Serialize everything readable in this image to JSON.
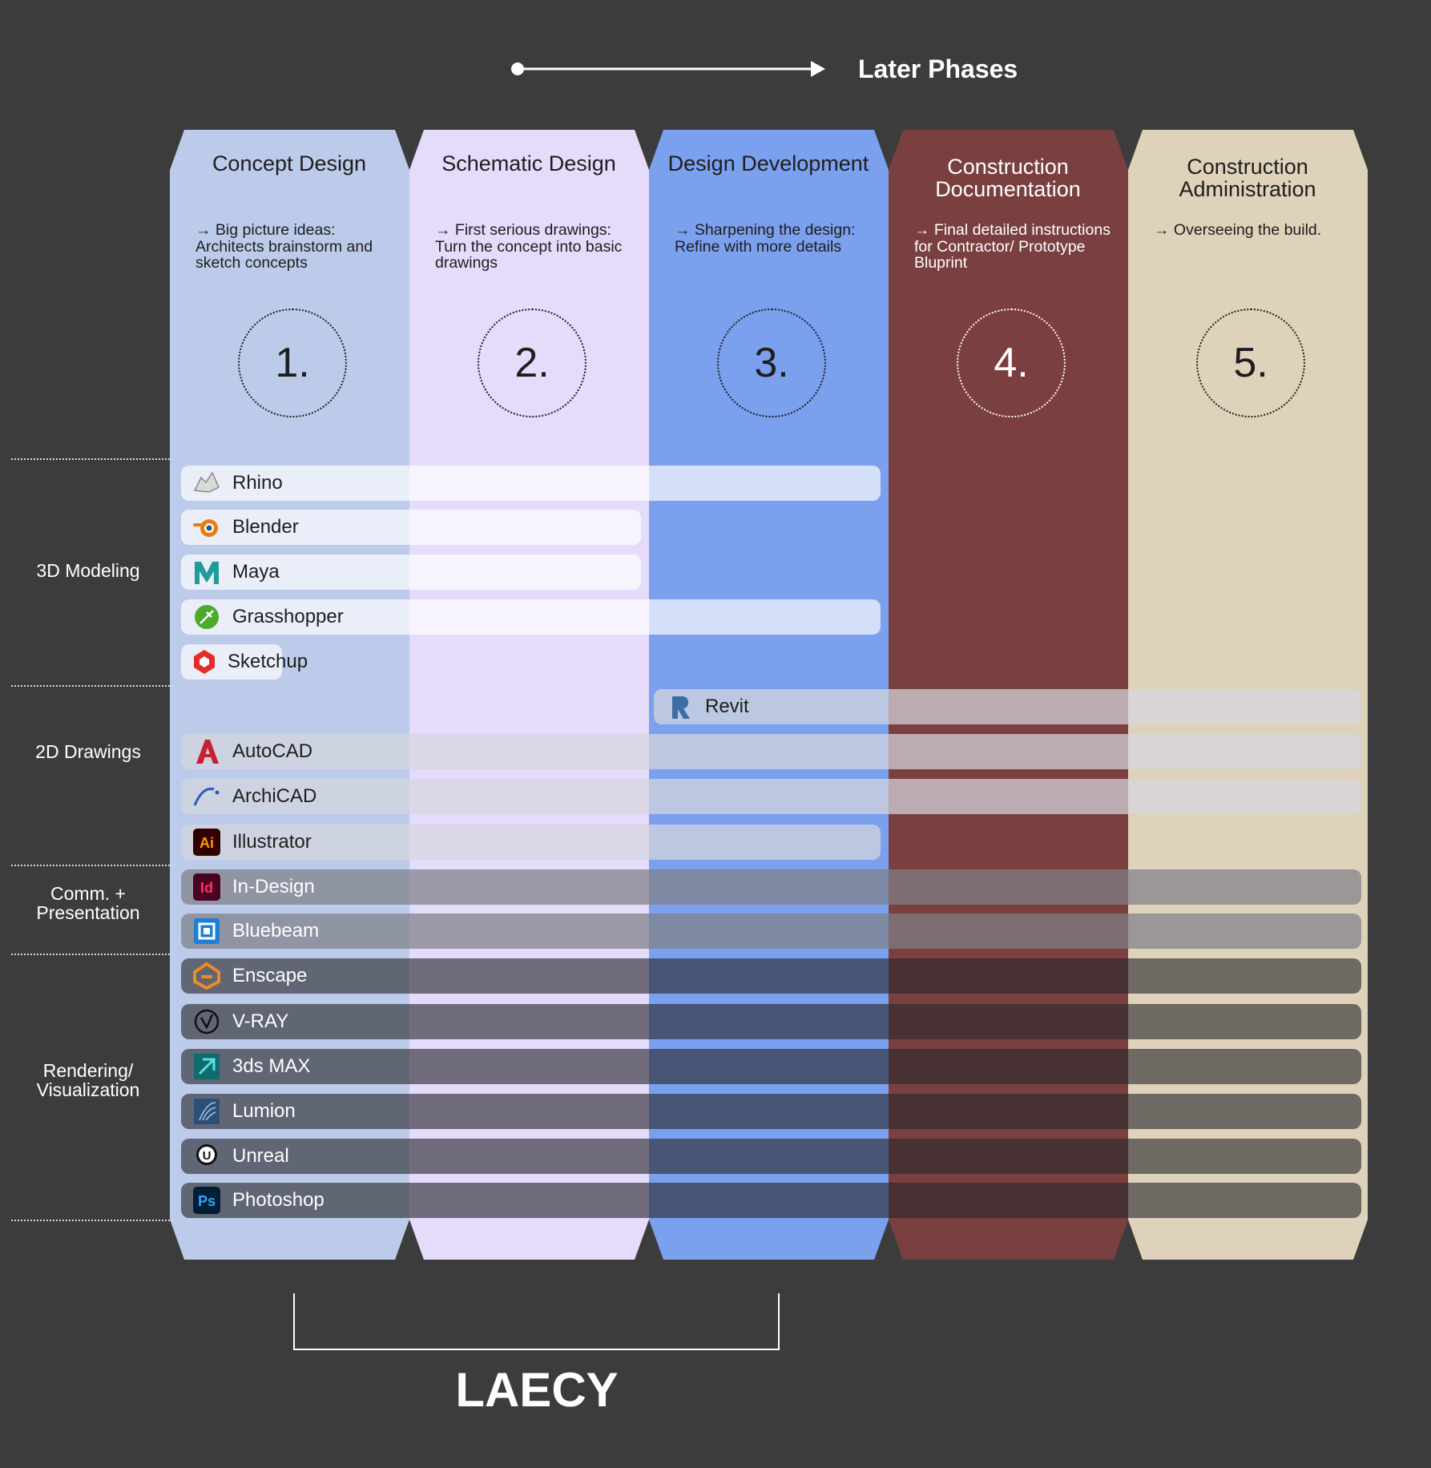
{
  "timeline": {
    "label": "Later Phases"
  },
  "phases": [
    {
      "title": "Concept Design",
      "description": "→ Big picture ideas: Architects brainstorm and sketch concepts",
      "number": "1.",
      "color": "#bccbea",
      "text_color": "#1e1e1e"
    },
    {
      "title": "Schematic Design",
      "description": "→ First serious drawings: Turn the concept into basic drawings",
      "number": "2.",
      "color": "#e5dbfb",
      "text_color": "#1e1e1e"
    },
    {
      "title": "Design Development",
      "description": "→ Sharpening the design: Refine with more details",
      "number": "3.",
      "color": "#7ba0ee",
      "text_color": "#1e1e1e"
    },
    {
      "title": "Construction Documentation",
      "description": "→ Final detailed instructions for Contractor/ Prototype Bluprint",
      "number": "4.",
      "color": "#7a3f3f",
      "text_color": "#ffffff"
    },
    {
      "title": "Construction Administration",
      "description": "→ Overseeing the build.",
      "number": "5.",
      "color": "#dfd2bb",
      "text_color": "#1e1e1e"
    }
  ],
  "categories": [
    {
      "label": "3D Modeling"
    },
    {
      "label": "2D Drawings"
    },
    {
      "label": "Comm. + Presentation"
    },
    {
      "label": "Rendering/ Visualization"
    }
  ],
  "tools": [
    {
      "name": "Rhino",
      "icon": "rhino-icon",
      "start_phase": 1,
      "end_phase": 3,
      "style": "light"
    },
    {
      "name": "Blender",
      "icon": "blender-icon",
      "start_phase": 1,
      "end_phase": 2,
      "style": "light"
    },
    {
      "name": "Maya",
      "icon": "maya-icon",
      "start_phase": 1,
      "end_phase": 2,
      "style": "light"
    },
    {
      "name": "Grasshopper",
      "icon": "grasshopper-icon",
      "start_phase": 1,
      "end_phase": 3,
      "style": "light"
    },
    {
      "name": "Sketchup",
      "icon": "sketchup-icon",
      "start_phase": 1,
      "end_phase": 1.5,
      "style": "light"
    },
    {
      "name": "Revit",
      "icon": "revit-icon",
      "start_phase": 3,
      "end_phase": 5,
      "style": "mid"
    },
    {
      "name": "AutoCAD",
      "icon": "autocad-icon",
      "start_phase": 1,
      "end_phase": 5,
      "style": "mid"
    },
    {
      "name": "ArchiCAD",
      "icon": "archicad-icon",
      "start_phase": 1,
      "end_phase": 5,
      "style": "mid"
    },
    {
      "name": "Illustrator",
      "icon": "illustrator-icon",
      "start_phase": 1,
      "end_phase": 3,
      "style": "mid"
    },
    {
      "name": "In-Design",
      "icon": "indesign-icon",
      "start_phase": 1,
      "end_phase": 5,
      "style": "gray"
    },
    {
      "name": "Bluebeam",
      "icon": "bluebeam-icon",
      "start_phase": 1,
      "end_phase": 5,
      "style": "gray"
    },
    {
      "name": "Enscape",
      "icon": "enscape-icon",
      "start_phase": 1,
      "end_phase": 5,
      "style": "dark"
    },
    {
      "name": "V-RAY",
      "icon": "vray-icon",
      "start_phase": 1,
      "end_phase": 5,
      "style": "dark"
    },
    {
      "name": "3ds MAX",
      "icon": "3dsmax-icon",
      "start_phase": 1,
      "end_phase": 5,
      "style": "dark"
    },
    {
      "name": "Lumion",
      "icon": "lumion-icon",
      "start_phase": 1,
      "end_phase": 5,
      "style": "dark"
    },
    {
      "name": "Unreal",
      "icon": "unreal-icon",
      "start_phase": 1,
      "end_phase": 5,
      "style": "dark"
    },
    {
      "name": "Photoshop",
      "icon": "photoshop-icon",
      "start_phase": 1,
      "end_phase": 5,
      "style": "dark"
    }
  ],
  "legacy_bracket": {
    "label": "LAECY",
    "start_phase": 1.5,
    "end_phase": 3.5
  }
}
